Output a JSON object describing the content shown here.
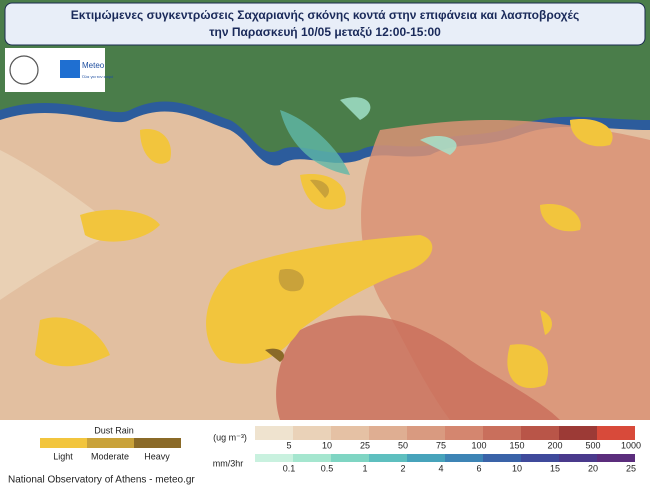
{
  "header": {
    "title_lines": [
      "Εκτιμώμενες συγκεντρώσεις Σαχαριανής σκόνης κοντά στην επιφάνεια και λασποβροχές",
      "την Παρασκευή 10/05 μεταξύ 12:00-15:00"
    ]
  },
  "logo": {
    "brand": "Meteo",
    "tagline": "Όλα για τον καιρό"
  },
  "legend": {
    "dust_rain": {
      "title": "Dust Rain",
      "levels": [
        {
          "label": "Light",
          "color": "#f2c53d"
        },
        {
          "label": "Moderate",
          "color": "#c9a23a"
        },
        {
          "label": "Heavy",
          "color": "#8a6a28"
        }
      ]
    },
    "concentration": {
      "units": "(ug m⁻³)",
      "ticks": [
        5,
        10,
        25,
        50,
        75,
        100,
        150,
        200,
        500,
        1000
      ],
      "colors": [
        "#efe3cf",
        "#ead2b8",
        "#e5c1a4",
        "#dfae92",
        "#d99a80",
        "#d4866f",
        "#c96f5c",
        "#b95548",
        "#9c3a36",
        "#d84a3a"
      ]
    },
    "rain": {
      "units": "mm/3hr",
      "ticks": [
        0.1,
        0.5,
        1,
        2,
        4,
        6,
        10,
        15,
        20,
        25
      ],
      "colors": [
        "#c9f1df",
        "#a5e6cf",
        "#7fd5c3",
        "#5ebfbf",
        "#47a3bb",
        "#3d84b5",
        "#3a63a8",
        "#3f4a9b",
        "#4a3a8c",
        "#5b2d7c"
      ]
    }
  },
  "footer": "National Observatory of Athens - meteo.gr"
}
